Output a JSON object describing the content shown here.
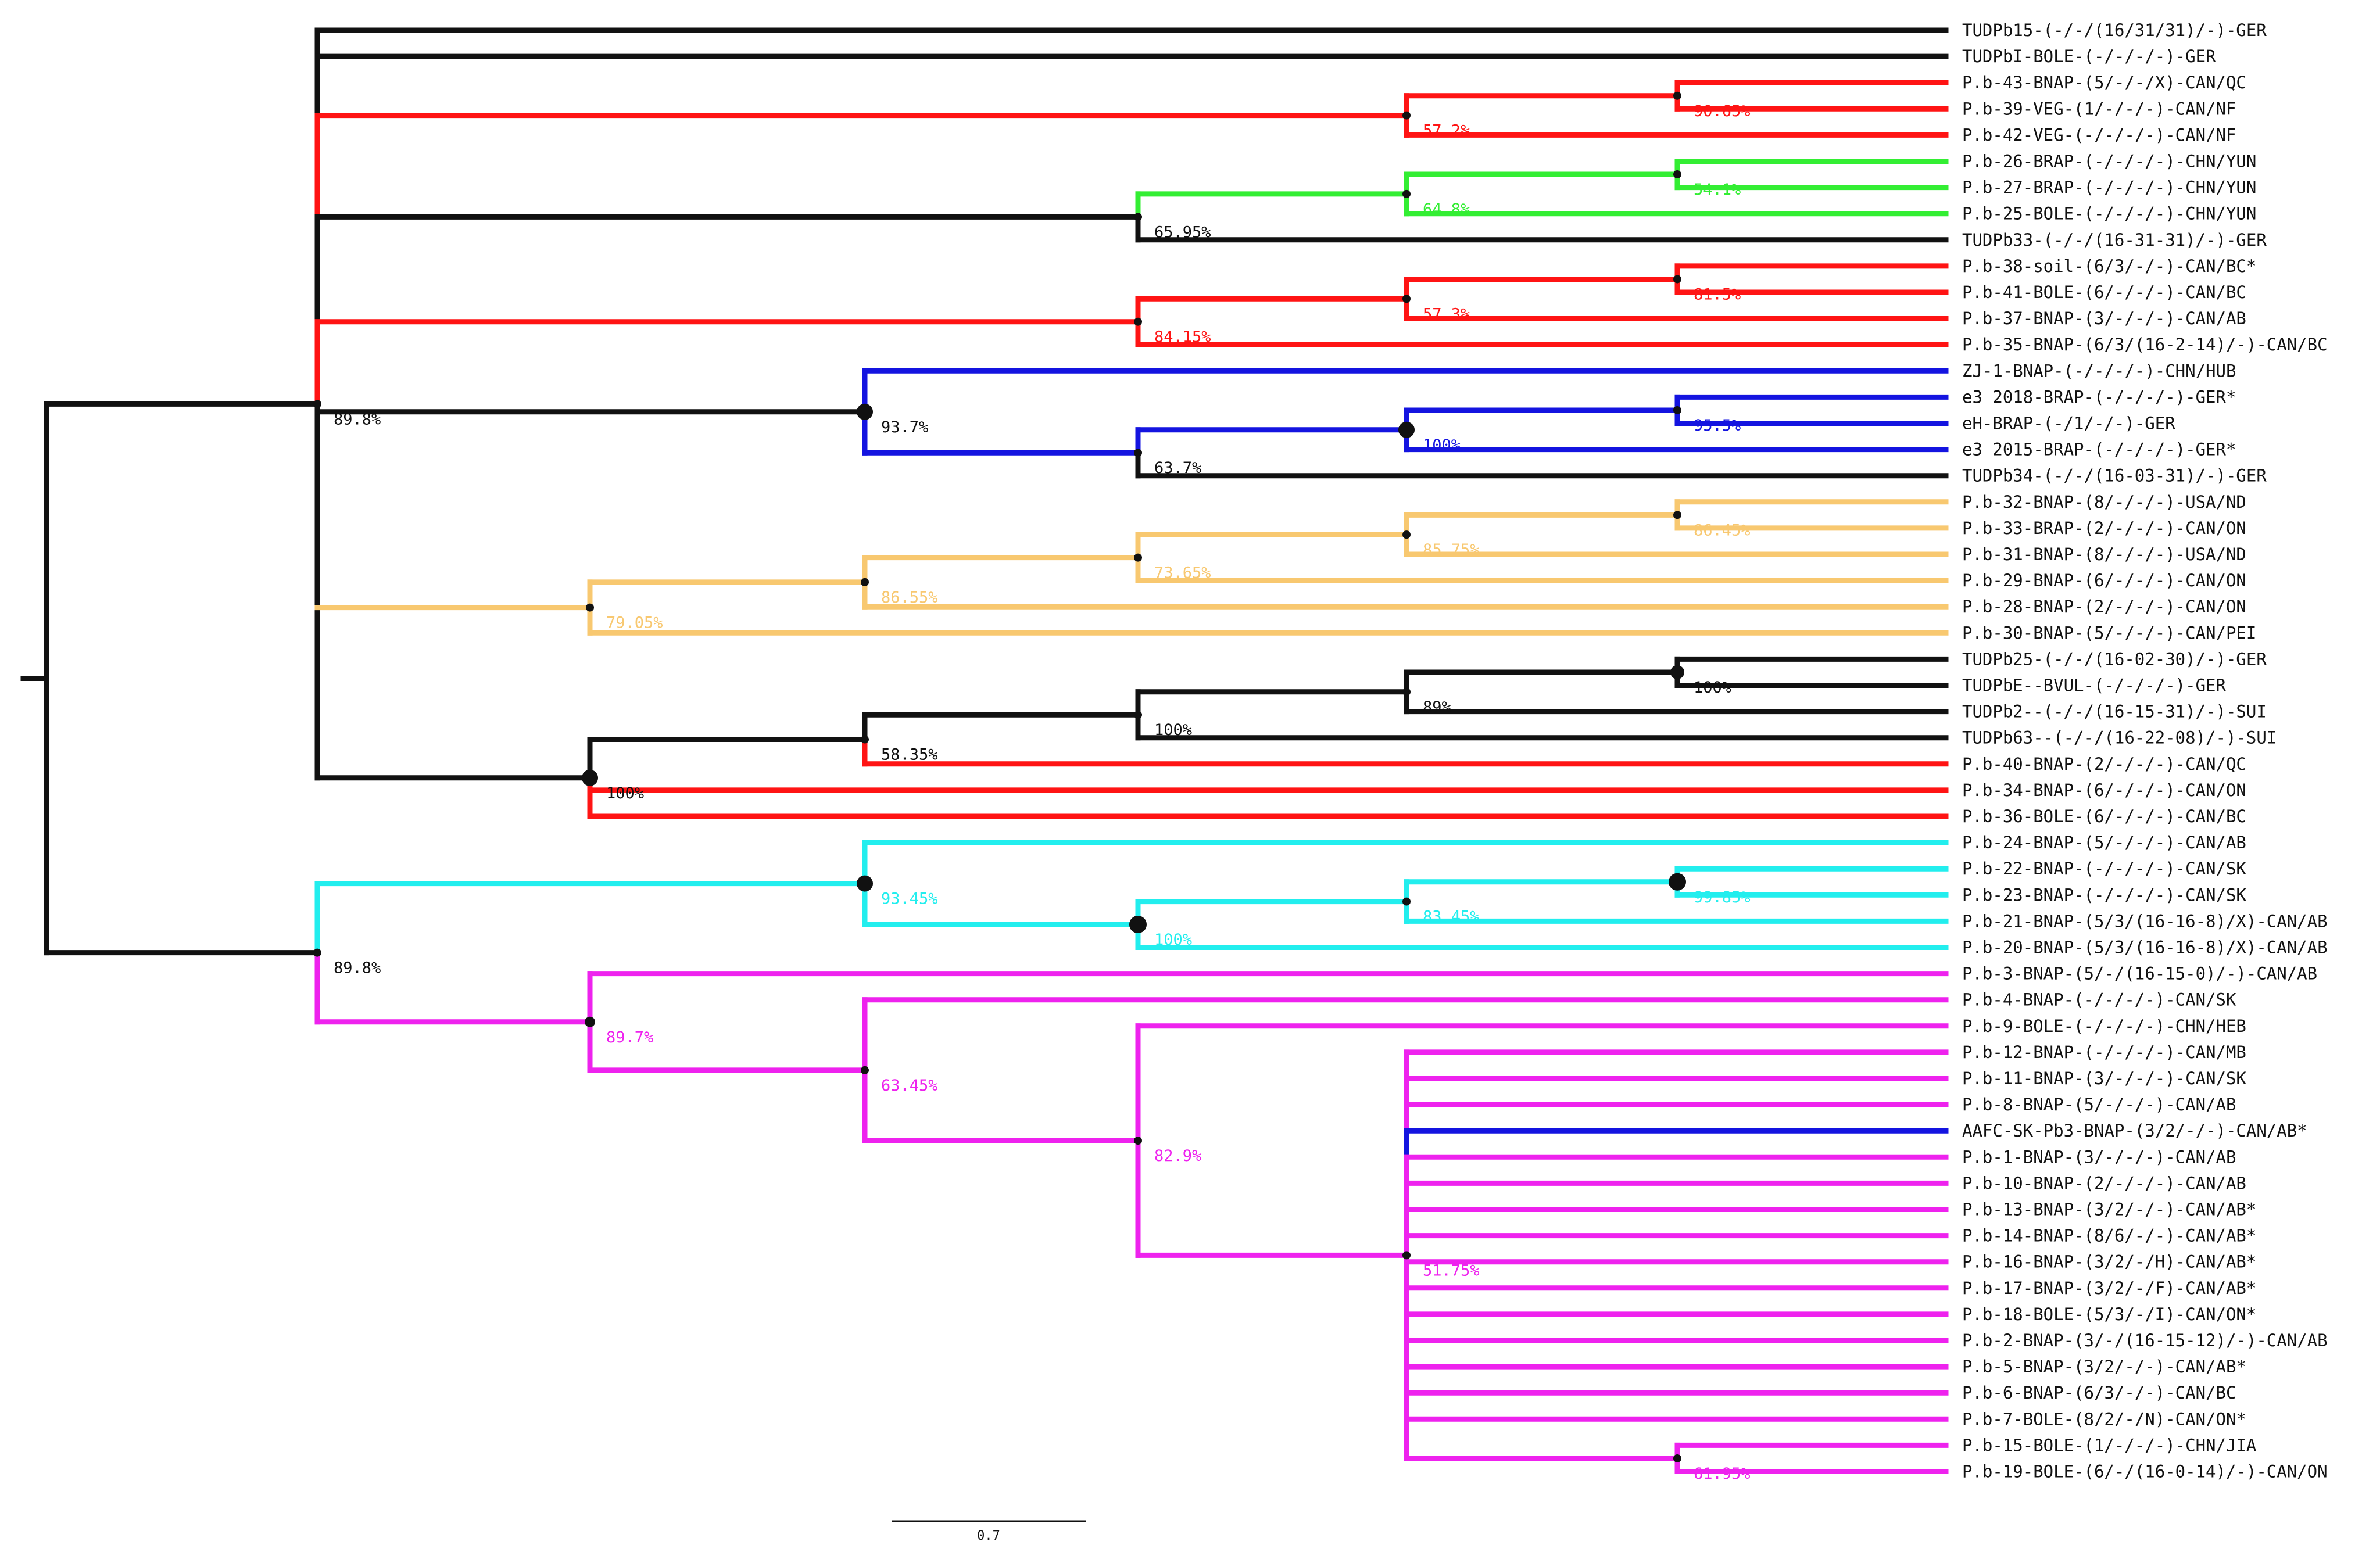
{
  "figure": {
    "title": "",
    "scale_bar_label": "0.7"
  },
  "colors": {
    "black": "#111111",
    "red": "#ff1414",
    "green": "#33ee33",
    "blue": "#1414e0",
    "orange": "#f8c870",
    "cyan": "#22eeee",
    "magenta": "#ee22ee"
  },
  "taxa": [
    "TUDPb15-(-/-/(16/31/31)/-)-GER",
    "TUDPbI-BOLE-(-/-/-/-)-GER",
    "P.b-43-BNAP-(5/-/-/X)-CAN/QC",
    "P.b-39-VEG-(1/-/-/-)-CAN/NF",
    "P.b-42-VEG-(-/-/-/-)-CAN/NF",
    "P.b-26-BRAP-(-/-/-/-)-CHN/YUN",
    "P.b-27-BRAP-(-/-/-/-)-CHN/YUN",
    "P.b-25-BOLE-(-/-/-/-)-CHN/YUN",
    "TUDPb33-(-/-/(16-31-31)/-)-GER",
    "P.b-38-soil-(6/3/-/-)-CAN/BC*",
    "P.b-41-BOLE-(6/-/-/-)-CAN/BC",
    "P.b-37-BNAP-(3/-/-/-)-CAN/AB",
    "P.b-35-BNAP-(6/3/(16-2-14)/-)-CAN/BC",
    "ZJ-1-BNAP-(-/-/-/-)-CHN/HUB",
    "e3 2018-BRAP-(-/-/-/-)-GER*",
    "eH-BRAP-(-/1/-/-)-GER",
    "e3 2015-BRAP-(-/-/-/-)-GER*",
    "TUDPb34-(-/-/(16-03-31)/-)-GER",
    "P.b-32-BNAP-(8/-/-/-)-USA/ND",
    "P.b-33-BRAP-(2/-/-/-)-CAN/ON",
    "P.b-31-BNAP-(8/-/-/-)-USA/ND",
    "P.b-29-BNAP-(6/-/-/-)-CAN/ON",
    "P.b-28-BNAP-(2/-/-/-)-CAN/ON",
    "P.b-30-BNAP-(5/-/-/-)-CAN/PEI",
    "TUDPb25-(-/-/(16-02-30)/-)-GER",
    "TUDPbE--BVUL-(-/-/-/-)-GER",
    "TUDPb2--(-/-/(16-15-31)/-)-SUI",
    "TUDPb63--(-/-/(16-22-08)/-)-SUI",
    "P.b-40-BNAP-(2/-/-/-)-CAN/QC",
    "P.b-34-BNAP-(6/-/-/-)-CAN/ON",
    "P.b-36-BOLE-(6/-/-/-)-CAN/BC",
    "P.b-24-BNAP-(5/-/-/-)-CAN/AB",
    "P.b-22-BNAP-(-/-/-/-)-CAN/SK",
    "P.b-23-BNAP-(-/-/-/-)-CAN/SK",
    "P.b-21-BNAP-(5/3/(16-16-8)/X)-CAN/AB",
    "P.b-20-BNAP-(5/3/(16-16-8)/X)-CAN/AB",
    "P.b-3-BNAP-(5/-/(16-15-0)/-)-CAN/AB",
    "P.b-4-BNAP-(-/-/-/-)-CAN/SK",
    "P.b-9-BOLE-(-/-/-/-)-CHN/HEB",
    "P.b-12-BNAP-(-/-/-/-)-CAN/MB",
    "P.b-11-BNAP-(3/-/-/-)-CAN/SK",
    "P.b-8-BNAP-(5/-/-/-)-CAN/AB",
    "AAFC-SK-Pb3-BNAP-(3/2/-/-)-CAN/AB*",
    "P.b-1-BNAP-(3/-/-/-)-CAN/AB",
    "P.b-10-BNAP-(2/-/-/-)-CAN/AB",
    "P.b-13-BNAP-(3/2/-/-)-CAN/AB*",
    "P.b-14-BNAP-(8/6/-/-)-CAN/AB*",
    "P.b-16-BNAP-(3/2/-/H)-CAN/AB*",
    "P.b-17-BNAP-(3/2/-/F)-CAN/AB*",
    "P.b-18-BOLE-(5/3/-/I)-CAN/ON*",
    "P.b-2-BNAP-(3/-/(16-15-12)/-)-CAN/AB",
    "P.b-5-BNAP-(3/2/-/-)-CAN/AB*",
    "P.b-6-BNAP-(6/3/-/-)-CAN/BC",
    "P.b-7-BOLE-(8/2/-/N)-CAN/ON*",
    "P.b-15-BOLE-(1/-/-/-)-CHN/JIA",
    "P.b-19-BOLE-(6/-/(16-0-14)/-)-CAN/ON"
  ],
  "tip_colors": [
    "black",
    "black",
    "red",
    "red",
    "red",
    "green",
    "green",
    "green",
    "black",
    "red",
    "red",
    "red",
    "red",
    "blue",
    "blue",
    "blue",
    "blue",
    "black",
    "orange",
    "orange",
    "orange",
    "orange",
    "orange",
    "orange",
    "black",
    "black",
    "black",
    "black",
    "red",
    "red",
    "red",
    "cyan",
    "cyan",
    "cyan",
    "cyan",
    "cyan",
    "magenta",
    "magenta",
    "magenta",
    "magenta",
    "magenta",
    "magenta",
    "blue",
    "magenta",
    "magenta",
    "magenta",
    "magenta",
    "magenta",
    "magenta",
    "magenta",
    "magenta",
    "magenta",
    "magenta",
    "magenta",
    "magenta",
    "magenta"
  ],
  "tree": {
    "c": "black",
    "children": [
      {
        "id": "A",
        "c": "black",
        "s": "89.8%",
        "sc": "black",
        "children": [
          {
            "tip": 0,
            "c": "black"
          },
          {
            "tip": 1,
            "c": "black"
          },
          {
            "id": "n1",
            "c": "red",
            "s": "57.2%",
            "sc": "red",
            "children": [
              {
                "id": "n2",
                "c": "red",
                "s": "90.65%",
                "sc": "red",
                "children": [
                  {
                    "tip": 2,
                    "c": "red"
                  },
                  {
                    "tip": 3,
                    "c": "red"
                  }
                ]
              },
              {
                "tip": 4,
                "c": "red"
              }
            ]
          },
          {
            "id": "n3",
            "c": "black",
            "s": "65.95%",
            "sc": "black",
            "children": [
              {
                "id": "n4",
                "c": "green",
                "s": "64.8%",
                "sc": "green",
                "children": [
                  {
                    "id": "n5",
                    "c": "green",
                    "s": "54.1%",
                    "sc": "green",
                    "children": [
                      {
                        "tip": 5,
                        "c": "green"
                      },
                      {
                        "tip": 6,
                        "c": "green"
                      }
                    ]
                  },
                  {
                    "tip": 7,
                    "c": "green"
                  }
                ]
              },
              {
                "tip": 8,
                "c": "black"
              }
            ]
          },
          {
            "id": "n6",
            "c": "red",
            "s": "84.15%",
            "sc": "red",
            "children": [
              {
                "id": "n7",
                "c": "red",
                "s": "57.3%",
                "sc": "red",
                "children": [
                  {
                    "id": "n8",
                    "c": "red",
                    "s": "81.5%",
                    "sc": "red",
                    "children": [
                      {
                        "tip": 9,
                        "c": "red"
                      },
                      {
                        "tip": 10,
                        "c": "red"
                      }
                    ]
                  },
                  {
                    "tip": 11,
                    "c": "red"
                  }
                ]
              },
              {
                "tip": 12,
                "c": "red"
              }
            ]
          },
          {
            "id": "n9",
            "c": "black",
            "s": "93.7%",
            "sc": "black",
            "children": [
              {
                "tip": 13,
                "c": "blue"
              },
              {
                "id": "n10",
                "c": "blue",
                "s": "63.7%",
                "sc": "black",
                "children": [
                  {
                    "id": "n11",
                    "c": "blue",
                    "s": "100%",
                    "sc": "blue",
                    "children": [
                      {
                        "id": "n12",
                        "c": "blue",
                        "s": "95.5%",
                        "sc": "blue",
                        "children": [
                          {
                            "tip": 14,
                            "c": "blue"
                          },
                          {
                            "tip": 15,
                            "c": "blue"
                          }
                        ]
                      },
                      {
                        "tip": 16,
                        "c": "blue"
                      }
                    ]
                  },
                  {
                    "tip": 17,
                    "c": "black"
                  }
                ]
              }
            ]
          },
          {
            "id": "n13",
            "c": "orange",
            "s": "79.05%",
            "sc": "orange",
            "children": [
              {
                "id": "n14",
                "c": "orange",
                "s": "86.55%",
                "sc": "orange",
                "children": [
                  {
                    "id": "n15",
                    "c": "orange",
                    "s": "73.65%",
                    "sc": "orange",
                    "children": [
                      {
                        "id": "n16",
                        "c": "orange",
                        "s": "85.75%",
                        "sc": "orange",
                        "children": [
                          {
                            "id": "n17",
                            "c": "orange",
                            "s": "86.45%",
                            "sc": "orange",
                            "children": [
                              {
                                "tip": 18,
                                "c": "orange"
                              },
                              {
                                "tip": 19,
                                "c": "orange"
                              }
                            ]
                          },
                          {
                            "tip": 20,
                            "c": "orange"
                          }
                        ]
                      },
                      {
                        "tip": 21,
                        "c": "orange"
                      }
                    ]
                  },
                  {
                    "tip": 22,
                    "c": "orange"
                  }
                ]
              },
              {
                "tip": 23,
                "c": "orange"
              }
            ]
          },
          {
            "id": "n18",
            "c": "black",
            "s": "100%",
            "sc": "black",
            "children": [
              {
                "id": "n19",
                "c": "black",
                "s": "58.35%",
                "sc": "black",
                "children": [
                  {
                    "id": "n20",
                    "c": "black",
                    "s": "100%",
                    "sc": "black",
                    "children": [
                      {
                        "id": "n21",
                        "c": "black",
                        "s": "89%",
                        "sc": "black",
                        "children": [
                          {
                            "id": "n22",
                            "c": "black",
                            "s": "100%",
                            "sc": "black",
                            "children": [
                              {
                                "tip": 24,
                                "c": "black"
                              },
                              {
                                "tip": 25,
                                "c": "black"
                              }
                            ]
                          },
                          {
                            "tip": 26,
                            "c": "black"
                          }
                        ]
                      },
                      {
                        "tip": 27,
                        "c": "black"
                      }
                    ]
                  },
                  {
                    "tip": 28,
                    "c": "red"
                  }
                ]
              },
              {
                "tip": 29,
                "c": "red"
              },
              {
                "tip": 30,
                "c": "red"
              }
            ]
          }
        ]
      },
      {
        "id": "B",
        "c": "black",
        "s": "89.8%",
        "sc": "black",
        "children": [
          {
            "id": "n23",
            "c": "cyan",
            "s": "93.45%",
            "sc": "cyan",
            "children": [
              {
                "tip": 31,
                "c": "cyan"
              },
              {
                "id": "n24",
                "c": "cyan",
                "s": "100%",
                "sc": "cyan",
                "children": [
                  {
                    "id": "n25",
                    "c": "cyan",
                    "s": "83.45%",
                    "sc": "cyan",
                    "children": [
                      {
                        "id": "n26",
                        "c": "cyan",
                        "s": "99.85%",
                        "sc": "cyan",
                        "children": [
                          {
                            "tip": 32,
                            "c": "cyan"
                          },
                          {
                            "tip": 33,
                            "c": "cyan"
                          }
                        ]
                      },
                      {
                        "tip": 34,
                        "c": "cyan"
                      }
                    ]
                  },
                  {
                    "tip": 35,
                    "c": "cyan"
                  }
                ]
              }
            ]
          },
          {
            "id": "n27",
            "c": "magenta",
            "s": "89.7%",
            "sc": "magenta",
            "children": [
              {
                "tip": 36,
                "c": "magenta"
              },
              {
                "id": "n28",
                "c": "magenta",
                "s": "63.45%",
                "sc": "magenta",
                "children": [
                  {
                    "tip": 37,
                    "c": "magenta"
                  },
                  {
                    "id": "n29",
                    "c": "magenta",
                    "s": "82.9%",
                    "sc": "magenta",
                    "children": [
                      {
                        "tip": 38,
                        "c": "magenta"
                      },
                      {
                        "id": "n30",
                        "c": "magenta",
                        "s": "51.75%",
                        "sc": "magenta",
                        "children": [
                          {
                            "tip": 39,
                            "c": "magenta"
                          },
                          {
                            "tip": 40,
                            "c": "magenta"
                          },
                          {
                            "tip": 41,
                            "c": "magenta"
                          },
                          {
                            "tip": 42,
                            "c": "blue"
                          },
                          {
                            "tip": 43,
                            "c": "magenta"
                          },
                          {
                            "tip": 44,
                            "c": "magenta"
                          },
                          {
                            "tip": 45,
                            "c": "magenta"
                          },
                          {
                            "tip": 46,
                            "c": "magenta"
                          },
                          {
                            "tip": 47,
                            "c": "magenta"
                          },
                          {
                            "tip": 48,
                            "c": "magenta"
                          },
                          {
                            "tip": 49,
                            "c": "magenta"
                          },
                          {
                            "tip": 50,
                            "c": "magenta"
                          },
                          {
                            "tip": 51,
                            "c": "magenta"
                          },
                          {
                            "tip": 52,
                            "c": "magenta"
                          },
                          {
                            "tip": 53,
                            "c": "magenta"
                          },
                          {
                            "id": "n31",
                            "c": "magenta",
                            "s": "61.95%",
                            "sc": "magenta",
                            "children": [
                              {
                                "tip": 54,
                                "c": "magenta"
                              },
                              {
                                "tip": 55,
                                "c": "magenta"
                              }
                            ]
                          }
                        ]
                      }
                    ]
                  }
                ]
              }
            ]
          }
        ]
      }
    ]
  }
}
